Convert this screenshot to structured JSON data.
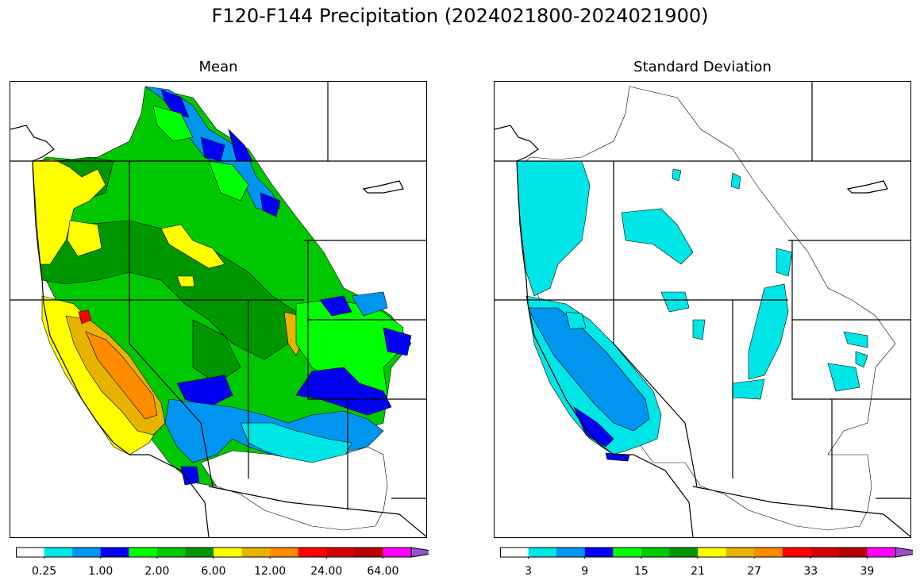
{
  "figure": {
    "title": "F120-F144 Precipitation (2024021800-2024021900)"
  },
  "panels": [
    {
      "title": "Mean",
      "colorbar": {
        "colors": [
          "#ffffff",
          "#00e5e5",
          "#0096f0",
          "#0000f0",
          "#00ff00",
          "#00c800",
          "#009600",
          "#ffff00",
          "#e6b400",
          "#ff8c00",
          "#ff0000",
          "#d20000",
          "#b40000",
          "#ff00ff",
          "#9650c8"
        ],
        "tick_labels": [
          "0.25",
          "1.00",
          "2.00",
          "6.00",
          "12.00",
          "24.00",
          "64.00"
        ],
        "tick_boundaries": [
          1,
          3,
          5,
          7,
          9,
          11,
          13
        ],
        "extend": "max"
      }
    },
    {
      "title": "Standard Deviation",
      "colorbar": {
        "colors": [
          "#ffffff",
          "#00e5e5",
          "#0096f0",
          "#0000f0",
          "#00ff00",
          "#00c800",
          "#009600",
          "#ffff00",
          "#e6b400",
          "#ff8c00",
          "#ff0000",
          "#d20000",
          "#b40000",
          "#ff00ff",
          "#9650c8"
        ],
        "tick_labels": [
          "3",
          "9",
          "15",
          "21",
          "27",
          "33",
          "39"
        ],
        "tick_boundaries": [
          1,
          3,
          5,
          7,
          9,
          11,
          13
        ],
        "extend": "max"
      }
    }
  ]
}
